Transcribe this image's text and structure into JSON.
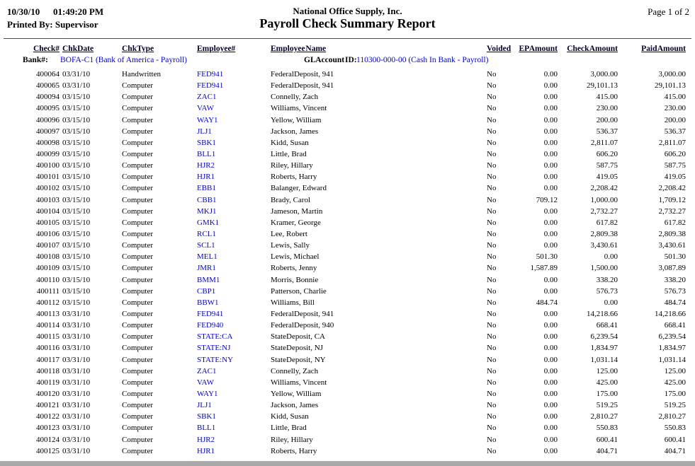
{
  "header": {
    "date": "10/30/10",
    "time": "01:49:20 PM",
    "printed_by": "Printed By: Supervisor",
    "company": "National Office Supply, Inc.",
    "title": "Payroll Check Summary Report",
    "page": "Page 1 of 2"
  },
  "columns": {
    "check_no": "Check#",
    "chk_date": "ChkDate",
    "chk_type": "ChkType",
    "employee_no": "Employee#",
    "employee_name": "Employee Name",
    "voided": "Voided",
    "ep_amount": "EP Amount",
    "check_amount": "Check Amount",
    "paid_amount": "Paid Amount"
  },
  "bank": {
    "label": "Bank#:",
    "value": "BOFA-C1 (Bank of America - Payroll)",
    "gl_label": "GL Account ID:",
    "gl_value": "110300-000-00 (Cash In Bank - Payroll)"
  },
  "colors": {
    "link": "#0000ee",
    "text": "#000000",
    "rule": "#4d4d4d",
    "bottom_bar": "#a8a8a8"
  },
  "rows": [
    {
      "check_no": "400064",
      "chk_date": "03/31/10",
      "chk_type": "Handwritten",
      "employee_no": "FED941",
      "employee_name": "FederalDeposit, 941",
      "voided": "No",
      "ep_amount": "0.00",
      "check_amount": "3,000.00",
      "paid_amount": "3,000.00"
    },
    {
      "check_no": "400065",
      "chk_date": "03/31/10",
      "chk_type": "Computer",
      "employee_no": "FED941",
      "employee_name": "FederalDeposit, 941",
      "voided": "No",
      "ep_amount": "0.00",
      "check_amount": "29,101.13",
      "paid_amount": "29,101.13"
    },
    {
      "check_no": "400094",
      "chk_date": "03/15/10",
      "chk_type": "Computer",
      "employee_no": "ZAC1",
      "employee_name": "Connelly, Zach",
      "voided": "No",
      "ep_amount": "0.00",
      "check_amount": "415.00",
      "paid_amount": "415.00"
    },
    {
      "check_no": "400095",
      "chk_date": "03/15/10",
      "chk_type": "Computer",
      "employee_no": "VAW",
      "employee_name": "Williams, Vincent",
      "voided": "No",
      "ep_amount": "0.00",
      "check_amount": "230.00",
      "paid_amount": "230.00"
    },
    {
      "check_no": "400096",
      "chk_date": "03/15/10",
      "chk_type": "Computer",
      "employee_no": "WAY1",
      "employee_name": "Yellow, William",
      "voided": "No",
      "ep_amount": "0.00",
      "check_amount": "200.00",
      "paid_amount": "200.00"
    },
    {
      "check_no": "400097",
      "chk_date": "03/15/10",
      "chk_type": "Computer",
      "employee_no": "JLJ1",
      "employee_name": "Jackson, James",
      "voided": "No",
      "ep_amount": "0.00",
      "check_amount": "536.37",
      "paid_amount": "536.37"
    },
    {
      "check_no": "400098",
      "chk_date": "03/15/10",
      "chk_type": "Computer",
      "employee_no": "SBK1",
      "employee_name": "Kidd, Susan",
      "voided": "No",
      "ep_amount": "0.00",
      "check_amount": "2,811.07",
      "paid_amount": "2,811.07"
    },
    {
      "check_no": "400099",
      "chk_date": "03/15/10",
      "chk_type": "Computer",
      "employee_no": "BLL1",
      "employee_name": "Little, Brad",
      "voided": "No",
      "ep_amount": "0.00",
      "check_amount": "606.20",
      "paid_amount": "606.20"
    },
    {
      "check_no": "400100",
      "chk_date": "03/15/10",
      "chk_type": "Computer",
      "employee_no": "HJR2",
      "employee_name": "Riley, Hillary",
      "voided": "No",
      "ep_amount": "0.00",
      "check_amount": "587.75",
      "paid_amount": "587.75"
    },
    {
      "check_no": "400101",
      "chk_date": "03/15/10",
      "chk_type": "Computer",
      "employee_no": "HJR1",
      "employee_name": "Roberts, Harry",
      "voided": "No",
      "ep_amount": "0.00",
      "check_amount": "419.05",
      "paid_amount": "419.05"
    },
    {
      "check_no": "400102",
      "chk_date": "03/15/10",
      "chk_type": "Computer",
      "employee_no": "EBB1",
      "employee_name": "Balanger, Edward",
      "voided": "No",
      "ep_amount": "0.00",
      "check_amount": "2,208.42",
      "paid_amount": "2,208.42"
    },
    {
      "check_no": "400103",
      "chk_date": "03/15/10",
      "chk_type": "Computer",
      "employee_no": "CBB1",
      "employee_name": "Brady, Carol",
      "voided": "No",
      "ep_amount": "709.12",
      "check_amount": "1,000.00",
      "paid_amount": "1,709.12"
    },
    {
      "check_no": "400104",
      "chk_date": "03/15/10",
      "chk_type": "Computer",
      "employee_no": "MKJ1",
      "employee_name": "Jameson, Martin",
      "voided": "No",
      "ep_amount": "0.00",
      "check_amount": "2,732.27",
      "paid_amount": "2,732.27"
    },
    {
      "check_no": "400105",
      "chk_date": "03/15/10",
      "chk_type": "Computer",
      "employee_no": "GMK1",
      "employee_name": "Kramer, George",
      "voided": "No",
      "ep_amount": "0.00",
      "check_amount": "617.82",
      "paid_amount": "617.82"
    },
    {
      "check_no": "400106",
      "chk_date": "03/15/10",
      "chk_type": "Computer",
      "employee_no": "RCL1",
      "employee_name": "Lee, Robert",
      "voided": "No",
      "ep_amount": "0.00",
      "check_amount": "2,809.38",
      "paid_amount": "2,809.38"
    },
    {
      "check_no": "400107",
      "chk_date": "03/15/10",
      "chk_type": "Computer",
      "employee_no": "SCL1",
      "employee_name": "Lewis, Sally",
      "voided": "No",
      "ep_amount": "0.00",
      "check_amount": "3,430.61",
      "paid_amount": "3,430.61"
    },
    {
      "check_no": "400108",
      "chk_date": "03/15/10",
      "chk_type": "Computer",
      "employee_no": "MEL1",
      "employee_name": "Lewis, Michael",
      "voided": "No",
      "ep_amount": "501.30",
      "check_amount": "0.00",
      "paid_amount": "501.30"
    },
    {
      "check_no": "400109",
      "chk_date": "03/15/10",
      "chk_type": "Computer",
      "employee_no": "JMR1",
      "employee_name": "Roberts, Jenny",
      "voided": "No",
      "ep_amount": "1,587.89",
      "check_amount": "1,500.00",
      "paid_amount": "3,087.89"
    },
    {
      "check_no": "400110",
      "chk_date": "03/15/10",
      "chk_type": "Computer",
      "employee_no": "BMM1",
      "employee_name": "Morris, Bonnie",
      "voided": "No",
      "ep_amount": "0.00",
      "check_amount": "338.20",
      "paid_amount": "338.20"
    },
    {
      "check_no": "400111",
      "chk_date": "03/15/10",
      "chk_type": "Computer",
      "employee_no": "CBP1",
      "employee_name": "Patterson, Charlie",
      "voided": "No",
      "ep_amount": "0.00",
      "check_amount": "576.73",
      "paid_amount": "576.73"
    },
    {
      "check_no": "400112",
      "chk_date": "03/15/10",
      "chk_type": "Computer",
      "employee_no": "BBW1",
      "employee_name": "Williams, Bill",
      "voided": "No",
      "ep_amount": "484.74",
      "check_amount": "0.00",
      "paid_amount": "484.74"
    },
    {
      "check_no": "400113",
      "chk_date": "03/31/10",
      "chk_type": "Computer",
      "employee_no": "FED941",
      "employee_name": "FederalDeposit, 941",
      "voided": "No",
      "ep_amount": "0.00",
      "check_amount": "14,218.66",
      "paid_amount": "14,218.66"
    },
    {
      "check_no": "400114",
      "chk_date": "03/31/10",
      "chk_type": "Computer",
      "employee_no": "FED940",
      "employee_name": "FederalDeposit, 940",
      "voided": "No",
      "ep_amount": "0.00",
      "check_amount": "668.41",
      "paid_amount": "668.41"
    },
    {
      "check_no": "400115",
      "chk_date": "03/31/10",
      "chk_type": "Computer",
      "employee_no": "STATE:CA",
      "employee_name": "StateDeposit, CA",
      "voided": "No",
      "ep_amount": "0.00",
      "check_amount": "6,239.54",
      "paid_amount": "6,239.54"
    },
    {
      "check_no": "400116",
      "chk_date": "03/31/10",
      "chk_type": "Computer",
      "employee_no": "STATE:NJ",
      "employee_name": "StateDeposit, NJ",
      "voided": "No",
      "ep_amount": "0.00",
      "check_amount": "1,834.97",
      "paid_amount": "1,834.97"
    },
    {
      "check_no": "400117",
      "chk_date": "03/31/10",
      "chk_type": "Computer",
      "employee_no": "STATE:NY",
      "employee_name": "StateDeposit, NY",
      "voided": "No",
      "ep_amount": "0.00",
      "check_amount": "1,031.14",
      "paid_amount": "1,031.14"
    },
    {
      "check_no": "400118",
      "chk_date": "03/31/10",
      "chk_type": "Computer",
      "employee_no": "ZAC1",
      "employee_name": "Connelly, Zach",
      "voided": "No",
      "ep_amount": "0.00",
      "check_amount": "125.00",
      "paid_amount": "125.00"
    },
    {
      "check_no": "400119",
      "chk_date": "03/31/10",
      "chk_type": "Computer",
      "employee_no": "VAW",
      "employee_name": "Williams, Vincent",
      "voided": "No",
      "ep_amount": "0.00",
      "check_amount": "425.00",
      "paid_amount": "425.00"
    },
    {
      "check_no": "400120",
      "chk_date": "03/31/10",
      "chk_type": "Computer",
      "employee_no": "WAY1",
      "employee_name": "Yellow, William",
      "voided": "No",
      "ep_amount": "0.00",
      "check_amount": "175.00",
      "paid_amount": "175.00"
    },
    {
      "check_no": "400121",
      "chk_date": "03/31/10",
      "chk_type": "Computer",
      "employee_no": "JLJ1",
      "employee_name": "Jackson, James",
      "voided": "No",
      "ep_amount": "0.00",
      "check_amount": "519.25",
      "paid_amount": "519.25"
    },
    {
      "check_no": "400122",
      "chk_date": "03/31/10",
      "chk_type": "Computer",
      "employee_no": "SBK1",
      "employee_name": "Kidd, Susan",
      "voided": "No",
      "ep_amount": "0.00",
      "check_amount": "2,810.27",
      "paid_amount": "2,810.27"
    },
    {
      "check_no": "400123",
      "chk_date": "03/31/10",
      "chk_type": "Computer",
      "employee_no": "BLL1",
      "employee_name": "Little, Brad",
      "voided": "No",
      "ep_amount": "0.00",
      "check_amount": "550.83",
      "paid_amount": "550.83"
    },
    {
      "check_no": "400124",
      "chk_date": "03/31/10",
      "chk_type": "Computer",
      "employee_no": "HJR2",
      "employee_name": "Riley, Hillary",
      "voided": "No",
      "ep_amount": "0.00",
      "check_amount": "600.41",
      "paid_amount": "600.41"
    },
    {
      "check_no": "400125",
      "chk_date": "03/31/10",
      "chk_type": "Computer",
      "employee_no": "HJR1",
      "employee_name": "Roberts, Harry",
      "voided": "No",
      "ep_amount": "0.00",
      "check_amount": "404.71",
      "paid_amount": "404.71"
    }
  ]
}
